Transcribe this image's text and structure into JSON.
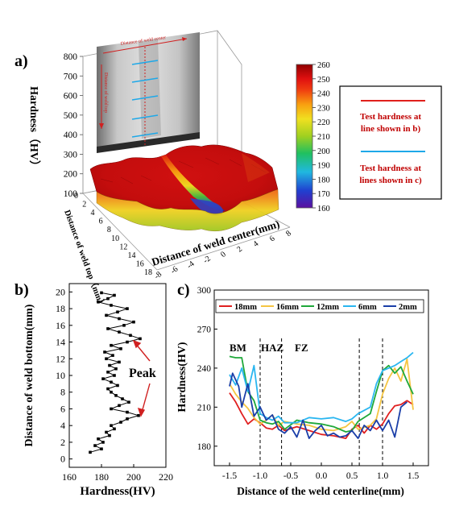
{
  "panels": {
    "a": {
      "label": "a)"
    },
    "b": {
      "label": "b)"
    },
    "c": {
      "label": "c)"
    }
  },
  "colors": {
    "red_line": "#e0201c",
    "cyan_line": "#1ea8e8",
    "s18": "#e02020",
    "s16": "#f5c542",
    "s12": "#1fa83a",
    "s6": "#2ab6f0",
    "s2": "#1a3ea8"
  },
  "chart_data": [
    {
      "id": "a",
      "type": "surface3d",
      "zlabel": "Hardness（HV）",
      "xlabel": "Distance of weld center(mm)",
      "ylabel": "Distance of weld top（mm）",
      "z_ticks": [
        "800",
        "700",
        "600",
        "500",
        "400",
        "300",
        "200",
        "100"
      ],
      "y_ticks": [
        "0",
        "2",
        "4",
        "6",
        "8",
        "10",
        "12",
        "14",
        "16",
        "18"
      ],
      "x_ticks": [
        "8",
        "6",
        "4",
        "2",
        "0",
        "-2",
        "-4",
        "-6",
        "-8"
      ],
      "inset_text": {
        "top": "Distance of weld center",
        "side": "Distance of weld top"
      },
      "colorbar": {
        "ticks": [
          "260",
          "250",
          "240",
          "230",
          "220",
          "210",
          "200",
          "190",
          "180",
          "170",
          "160"
        ],
        "range": [
          160,
          260
        ]
      },
      "legend": [
        "Test hardness at line shown in b)",
        "Test hardness at lines shown in c)"
      ]
    },
    {
      "id": "b",
      "type": "line",
      "xlabel": "Hardness(HV)",
      "ylabel": "Distance of weld bottom(mm)",
      "xlim": [
        160,
        220
      ],
      "ylim": [
        -1,
        21
      ],
      "x_ticks": [
        "160",
        "180",
        "200",
        "220"
      ],
      "y_ticks": [
        "0",
        "2",
        "4",
        "6",
        "8",
        "10",
        "12",
        "14",
        "16",
        "18",
        "20"
      ],
      "annotation": "Peak",
      "series": [
        {
          "points": [
            [
              173,
              0.8
            ],
            [
              180,
              1.2
            ],
            [
              176,
              1.6
            ],
            [
              181,
              2.0
            ],
            [
              178,
              2.4
            ],
            [
              185,
              2.8
            ],
            [
              183,
              3.2
            ],
            [
              188,
              3.6
            ],
            [
              186,
              4.0
            ],
            [
              192,
              4.4
            ],
            [
              196,
              4.8
            ],
            [
              203,
              5.2
            ],
            [
              196,
              5.6
            ],
            [
              186,
              6.0
            ],
            [
              191,
              6.4
            ],
            [
              197,
              6.8
            ],
            [
              193,
              7.2
            ],
            [
              189,
              7.6
            ],
            [
              186,
              8.0
            ],
            [
              184,
              8.4
            ],
            [
              190,
              8.8
            ],
            [
              186,
              9.2
            ],
            [
              181,
              9.6
            ],
            [
              188,
              10.0
            ],
            [
              184,
              10.4
            ],
            [
              189,
              10.8
            ],
            [
              185,
              11.2
            ],
            [
              191,
              11.6
            ],
            [
              183,
              12.0
            ],
            [
              187,
              12.4
            ],
            [
              182,
              12.8
            ],
            [
              192,
              13.2
            ],
            [
              186,
              13.6
            ],
            [
              196,
              14.0
            ],
            [
              204,
              14.4
            ],
            [
              198,
              14.8
            ],
            [
              191,
              15.2
            ],
            [
              184,
              15.6
            ],
            [
              194,
              16.0
            ],
            [
              200,
              16.4
            ],
            [
              191,
              16.8
            ],
            [
              183,
              17.2
            ],
            [
              190,
              17.6
            ],
            [
              196,
              18.0
            ],
            [
              186,
              18.4
            ],
            [
              178,
              18.8
            ],
            [
              184,
              19.2
            ],
            [
              188,
              19.6
            ],
            [
              180,
              19.9
            ]
          ]
        }
      ]
    },
    {
      "id": "c",
      "type": "line",
      "xlabel": "Distance of the weld centerline(mm)",
      "ylabel": "Hardness(HV)",
      "xlim": [
        -1.75,
        1.75
      ],
      "ylim": [
        165,
        300
      ],
      "x_ticks": [
        "-1.5",
        "-1.0",
        "-0.5",
        "0.0",
        "0.5",
        "1.0",
        "1.5"
      ],
      "y_ticks": [
        "180",
        "210",
        "240",
        "270",
        "300"
      ],
      "zone_labels": [
        "BM",
        "HAZ",
        "FZ"
      ],
      "vlines": [
        -1.0,
        -0.65,
        0.62,
        1.0
      ],
      "series": [
        {
          "name": "18mm",
          "color_key": "s18",
          "points": [
            [
              -1.5,
              221
            ],
            [
              -1.4,
              214
            ],
            [
              -1.3,
              205
            ],
            [
              -1.2,
              197
            ],
            [
              -1.1,
              201
            ],
            [
              -1.0,
              198
            ],
            [
              -0.9,
              194
            ],
            [
              -0.8,
              193
            ],
            [
              -0.7,
              196
            ],
            [
              -0.6,
              192
            ],
            [
              -0.4,
              195
            ],
            [
              -0.2,
              192
            ],
            [
              0.0,
              189
            ],
            [
              0.2,
              188
            ],
            [
              0.4,
              186
            ],
            [
              0.5,
              193
            ],
            [
              0.6,
              196
            ],
            [
              0.7,
              190
            ],
            [
              0.8,
              196
            ],
            [
              0.9,
              193
            ],
            [
              1.0,
              197
            ],
            [
              1.1,
              205
            ],
            [
              1.2,
              211
            ],
            [
              1.3,
              212
            ],
            [
              1.4,
              215
            ],
            [
              1.5,
              212
            ]
          ]
        },
        {
          "name": "16mm",
          "color_key": "s16",
          "points": [
            [
              -1.5,
              228
            ],
            [
              -1.4,
              220
            ],
            [
              -1.3,
              214
            ],
            [
              -1.2,
              209
            ],
            [
              -1.1,
              202
            ],
            [
              -1.0,
              197
            ],
            [
              -0.9,
              200
            ],
            [
              -0.8,
              204
            ],
            [
              -0.7,
              196
            ],
            [
              -0.6,
              199
            ],
            [
              -0.4,
              197
            ],
            [
              -0.2,
              196
            ],
            [
              0.0,
              193
            ],
            [
              0.2,
              192
            ],
            [
              0.4,
              195
            ],
            [
              0.5,
              199
            ],
            [
              0.6,
              193
            ],
            [
              0.8,
              196
            ],
            [
              0.9,
              201
            ],
            [
              1.0,
              220
            ],
            [
              1.1,
              232
            ],
            [
              1.2,
              240
            ],
            [
              1.3,
              230
            ],
            [
              1.4,
              247
            ],
            [
              1.5,
              208
            ]
          ]
        },
        {
          "name": "12mm",
          "color_key": "s12",
          "points": [
            [
              -1.5,
              249
            ],
            [
              -1.4,
              248
            ],
            [
              -1.3,
              248
            ],
            [
              -1.2,
              222
            ],
            [
              -1.1,
              215
            ],
            [
              -1.0,
              200
            ],
            [
              -0.9,
              198
            ],
            [
              -0.8,
              197
            ],
            [
              -0.7,
              199
            ],
            [
              -0.6,
              193
            ],
            [
              -0.4,
              200
            ],
            [
              -0.2,
              198
            ],
            [
              0.0,
              197
            ],
            [
              0.2,
              195
            ],
            [
              0.4,
              191
            ],
            [
              0.5,
              192
            ],
            [
              0.6,
              199
            ],
            [
              0.8,
              205
            ],
            [
              0.9,
              222
            ],
            [
              1.0,
              238
            ],
            [
              1.1,
              242
            ],
            [
              1.2,
              236
            ],
            [
              1.3,
              241
            ],
            [
              1.4,
              230
            ],
            [
              1.5,
              220
            ]
          ]
        },
        {
          "name": "6mm",
          "color_key": "s6",
          "points": [
            [
              -1.5,
              235
            ],
            [
              -1.4,
              227
            ],
            [
              -1.3,
              240
            ],
            [
              -1.2,
              222
            ],
            [
              -1.1,
              242
            ],
            [
              -1.0,
              205
            ],
            [
              -0.9,
              202
            ],
            [
              -0.8,
              200
            ],
            [
              -0.7,
              203
            ],
            [
              -0.6,
              198
            ],
            [
              -0.4,
              198
            ],
            [
              -0.2,
              202
            ],
            [
              0.0,
              201
            ],
            [
              0.2,
              202
            ],
            [
              0.4,
              199
            ],
            [
              0.5,
              201
            ],
            [
              0.6,
              205
            ],
            [
              0.8,
              210
            ],
            [
              0.9,
              228
            ],
            [
              1.0,
              238
            ],
            [
              1.1,
              240
            ],
            [
              1.2,
              242
            ],
            [
              1.3,
              245
            ],
            [
              1.4,
              248
            ],
            [
              1.5,
              252
            ]
          ]
        },
        {
          "name": "2mm",
          "color_key": "s2",
          "points": [
            [
              -1.5,
              226
            ],
            [
              -1.45,
              236
            ],
            [
              -1.35,
              226
            ],
            [
              -1.3,
              210
            ],
            [
              -1.2,
              228
            ],
            [
              -1.1,
              203
            ],
            [
              -1.0,
              210
            ],
            [
              -0.9,
              200
            ],
            [
              -0.8,
              204
            ],
            [
              -0.7,
              193
            ],
            [
              -0.6,
              190
            ],
            [
              -0.5,
              195
            ],
            [
              -0.4,
              187
            ],
            [
              -0.3,
              200
            ],
            [
              -0.2,
              186
            ],
            [
              -0.1,
              192
            ],
            [
              0.0,
              196
            ],
            [
              0.1,
              188
            ],
            [
              0.2,
              190
            ],
            [
              0.3,
              187
            ],
            [
              0.4,
              188
            ],
            [
              0.5,
              192
            ],
            [
              0.6,
              186
            ],
            [
              0.7,
              196
            ],
            [
              0.8,
              192
            ],
            [
              0.9,
              200
            ],
            [
              1.0,
              192
            ],
            [
              1.1,
              200
            ],
            [
              1.2,
              187
            ],
            [
              1.3,
              210
            ],
            [
              1.4,
              214
            ]
          ]
        }
      ]
    }
  ]
}
